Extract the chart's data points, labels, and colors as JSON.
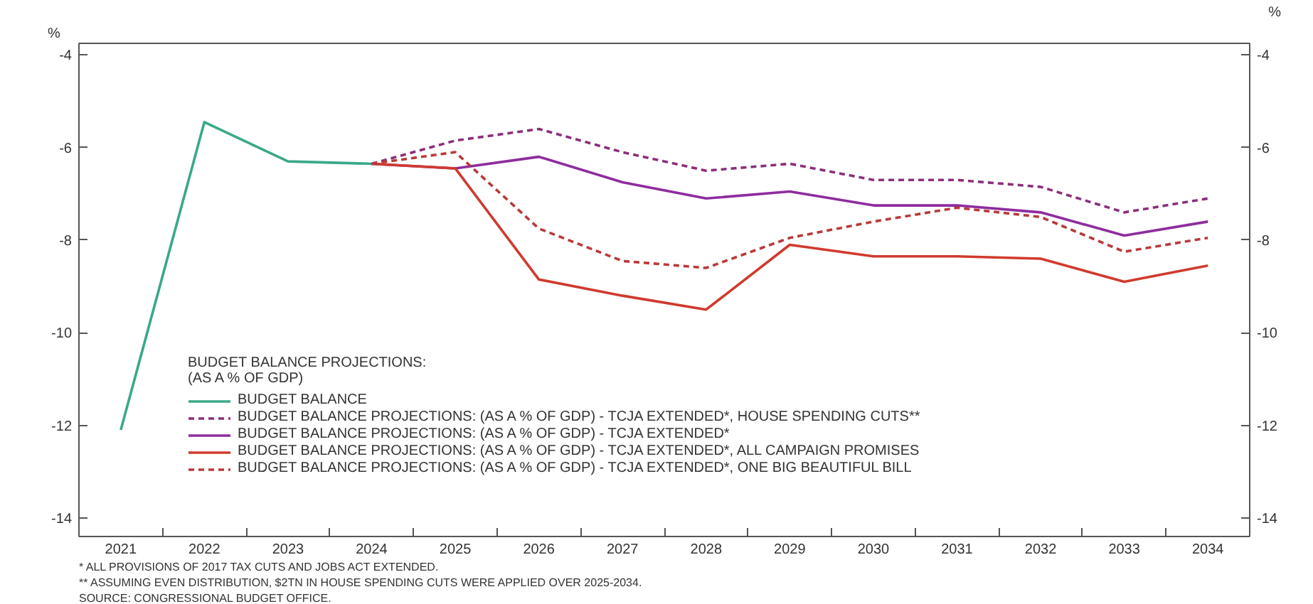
{
  "chart_data": {
    "type": "line",
    "ylabel": "%",
    "y2label": "%",
    "categories": [
      "2021",
      "2022",
      "2023",
      "2024",
      "2025",
      "2026",
      "2027",
      "2028",
      "2029",
      "2030",
      "2031",
      "2032",
      "2033",
      "2034"
    ],
    "ylim": [
      -14.4,
      -3.75
    ],
    "yticks": [
      -4,
      -6,
      -8,
      -10,
      -12,
      -14
    ],
    "y2lim": [
      -14.4,
      -3.75
    ],
    "y2ticks": [
      -4,
      -6,
      -8,
      -10,
      -12,
      -14
    ],
    "legend_title": "BUDGET BALANCE PROJECTIONS:\n(AS A % OF GDP)",
    "legend": "bottom left",
    "grid": false,
    "series": [
      {
        "name": "BUDGET BALANCE",
        "color": "#3aa88a",
        "line_style": "solid",
        "values": [
          -12.1,
          -5.45,
          -6.3,
          -6.35,
          null,
          null,
          null,
          null,
          null,
          null,
          null,
          null,
          null,
          null
        ]
      },
      {
        "name": "BUDGET BALANCE PROJECTIONS: (AS A % OF GDP) - TCJA EXTENDED*, HOUSE SPENDING CUTS**",
        "color": "#8b2f7a",
        "line_style": "dashed",
        "values": [
          null,
          null,
          null,
          -6.35,
          -5.85,
          -5.6,
          -6.1,
          -6.5,
          -6.35,
          -6.7,
          -6.7,
          -6.85,
          -7.4,
          -7.1
        ]
      },
      {
        "name": "BUDGET BALANCE PROJECTIONS: (AS A % OF GDP) - TCJA EXTENDED*",
        "color": "#8e2c9e",
        "line_style": "solid",
        "values": [
          null,
          null,
          null,
          -6.35,
          -6.45,
          -6.2,
          -6.75,
          -7.1,
          -6.95,
          -7.25,
          -7.25,
          -7.4,
          -7.9,
          -7.6
        ]
      },
      {
        "name": "BUDGET BALANCE PROJECTIONS: (AS A % OF GDP) - TCJA EXTENDED*, ALL CAMPAIGN PROMISES",
        "color": "#d03a2e",
        "line_style": "solid",
        "values": [
          null,
          null,
          null,
          -6.35,
          -6.45,
          -8.85,
          -9.2,
          -9.5,
          -8.1,
          -8.35,
          -8.35,
          -8.4,
          -8.9,
          -8.55
        ]
      },
      {
        "name": "BUDGET BALANCE PROJECTIONS: (AS A % OF GDP) - TCJA EXTENDED*, ONE BIG BEAUTIFUL BILL",
        "color": "#b83a3a",
        "line_style": "dashed",
        "values": [
          null,
          null,
          null,
          -6.35,
          -6.1,
          -7.75,
          -8.45,
          -8.6,
          -7.95,
          -7.6,
          -7.3,
          -7.5,
          -8.25,
          -7.95
        ]
      }
    ],
    "annotations": [
      "* ALL PROVISIONS OF 2017 TAX CUTS AND JOBS ACT EXTENDED.",
      "** ASSUMING EVEN DISTRIBUTION, $2TN IN HOUSE SPENDING CUTS WERE APPLIED OVER 2025-2034.",
      "SOURCE: CONGRESSIONAL BUDGET OFFICE."
    ]
  }
}
